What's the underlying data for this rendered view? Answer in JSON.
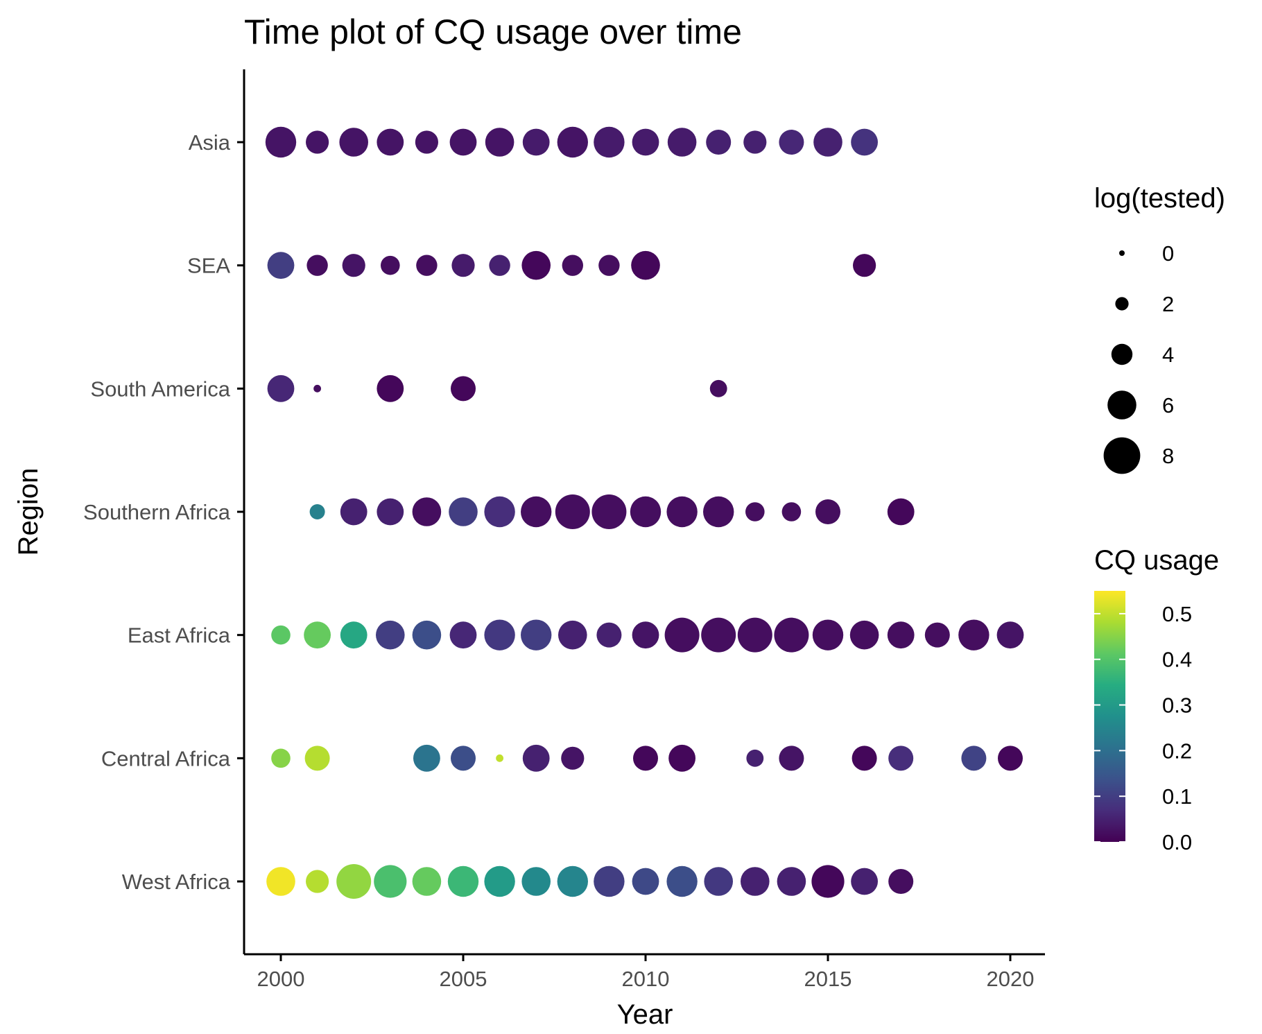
{
  "chart_data": {
    "type": "scatter",
    "title": "Time plot of CQ usage over time",
    "xlabel": "Year",
    "ylabel": "Region",
    "xlim": [
      1999,
      2021
    ],
    "x_ticks": [
      2000,
      2005,
      2010,
      2015,
      2020
    ],
    "categories": [
      "West Africa",
      "Central Africa",
      "East Africa",
      "Southern Africa",
      "South America",
      "SEA",
      "Asia"
    ],
    "grid": false,
    "size_legend": {
      "title": "log(tested)",
      "values": [
        0,
        2,
        4,
        6,
        8
      ],
      "labels": [
        "0",
        "2",
        "4",
        "6",
        "8"
      ]
    },
    "color_legend": {
      "title": "CQ usage",
      "range": [
        0,
        0.55
      ],
      "ticks": [
        0.0,
        0.1,
        0.2,
        0.3,
        0.4,
        0.5
      ],
      "labels": [
        "0.0",
        "0.1",
        "0.2",
        "0.3",
        "0.4",
        "0.5"
      ],
      "palette": "viridis"
    },
    "series": [
      {
        "region": "Asia",
        "points": [
          {
            "x": 2000,
            "size": 6.5,
            "color": 0.03
          },
          {
            "x": 2001,
            "size": 4.5,
            "color": 0.03
          },
          {
            "x": 2002,
            "size": 6.0,
            "color": 0.03
          },
          {
            "x": 2003,
            "size": 5.5,
            "color": 0.03
          },
          {
            "x": 2004,
            "size": 4.5,
            "color": 0.03
          },
          {
            "x": 2005,
            "size": 5.5,
            "color": 0.03
          },
          {
            "x": 2006,
            "size": 6.0,
            "color": 0.03
          },
          {
            "x": 2007,
            "size": 5.5,
            "color": 0.04
          },
          {
            "x": 2008,
            "size": 6.5,
            "color": 0.03
          },
          {
            "x": 2009,
            "size": 6.5,
            "color": 0.04
          },
          {
            "x": 2010,
            "size": 5.5,
            "color": 0.04
          },
          {
            "x": 2011,
            "size": 6.0,
            "color": 0.04
          },
          {
            "x": 2012,
            "size": 5.0,
            "color": 0.05
          },
          {
            "x": 2013,
            "size": 4.5,
            "color": 0.05
          },
          {
            "x": 2014,
            "size": 5.0,
            "color": 0.06
          },
          {
            "x": 2015,
            "size": 6.0,
            "color": 0.05
          },
          {
            "x": 2016,
            "size": 5.5,
            "color": 0.08
          }
        ]
      },
      {
        "region": "SEA",
        "points": [
          {
            "x": 2000,
            "size": 5.5,
            "color": 0.1
          },
          {
            "x": 2001,
            "size": 4.0,
            "color": 0.02
          },
          {
            "x": 2002,
            "size": 4.5,
            "color": 0.03
          },
          {
            "x": 2003,
            "size": 3.5,
            "color": 0.02
          },
          {
            "x": 2004,
            "size": 4.0,
            "color": 0.02
          },
          {
            "x": 2005,
            "size": 4.5,
            "color": 0.04
          },
          {
            "x": 2006,
            "size": 4.0,
            "color": 0.05
          },
          {
            "x": 2007,
            "size": 6.0,
            "color": 0.01
          },
          {
            "x": 2008,
            "size": 4.0,
            "color": 0.02
          },
          {
            "x": 2009,
            "size": 4.0,
            "color": 0.02
          },
          {
            "x": 2010,
            "size": 6.0,
            "color": 0.01
          },
          {
            "x": 2016,
            "size": 4.5,
            "color": 0.01
          }
        ]
      },
      {
        "region": "South America",
        "points": [
          {
            "x": 2000,
            "size": 5.5,
            "color": 0.06
          },
          {
            "x": 2001,
            "size": 0.5,
            "color": 0.02
          },
          {
            "x": 2003,
            "size": 5.5,
            "color": 0.01
          },
          {
            "x": 2005,
            "size": 5.0,
            "color": 0.01
          },
          {
            "x": 2012,
            "size": 3.0,
            "color": 0.02
          }
        ]
      },
      {
        "region": "Southern Africa",
        "points": [
          {
            "x": 2001,
            "size": 2.5,
            "color": 0.24
          },
          {
            "x": 2002,
            "size": 5.5,
            "color": 0.05
          },
          {
            "x": 2003,
            "size": 5.5,
            "color": 0.05
          },
          {
            "x": 2004,
            "size": 6.0,
            "color": 0.02
          },
          {
            "x": 2005,
            "size": 6.0,
            "color": 0.1
          },
          {
            "x": 2006,
            "size": 6.5,
            "color": 0.07
          },
          {
            "x": 2007,
            "size": 6.5,
            "color": 0.02
          },
          {
            "x": 2008,
            "size": 7.5,
            "color": 0.02
          },
          {
            "x": 2009,
            "size": 7.5,
            "color": 0.02
          },
          {
            "x": 2010,
            "size": 6.5,
            "color": 0.02
          },
          {
            "x": 2011,
            "size": 6.5,
            "color": 0.02
          },
          {
            "x": 2012,
            "size": 6.5,
            "color": 0.02
          },
          {
            "x": 2013,
            "size": 3.5,
            "color": 0.02
          },
          {
            "x": 2014,
            "size": 3.5,
            "color": 0.02
          },
          {
            "x": 2015,
            "size": 5.0,
            "color": 0.02
          },
          {
            "x": 2017,
            "size": 5.5,
            "color": 0.01
          }
        ]
      },
      {
        "region": "East Africa",
        "points": [
          {
            "x": 2000,
            "size": 3.5,
            "color": 0.41
          },
          {
            "x": 2001,
            "size": 5.5,
            "color": 0.42
          },
          {
            "x": 2002,
            "size": 5.5,
            "color": 0.33
          },
          {
            "x": 2003,
            "size": 6.0,
            "color": 0.1
          },
          {
            "x": 2004,
            "size": 6.0,
            "color": 0.13
          },
          {
            "x": 2005,
            "size": 5.5,
            "color": 0.06
          },
          {
            "x": 2006,
            "size": 6.5,
            "color": 0.09
          },
          {
            "x": 2007,
            "size": 6.5,
            "color": 0.1
          },
          {
            "x": 2008,
            "size": 6.0,
            "color": 0.05
          },
          {
            "x": 2009,
            "size": 5.0,
            "color": 0.05
          },
          {
            "x": 2010,
            "size": 5.5,
            "color": 0.03
          },
          {
            "x": 2011,
            "size": 7.5,
            "color": 0.02
          },
          {
            "x": 2012,
            "size": 7.5,
            "color": 0.02
          },
          {
            "x": 2013,
            "size": 7.5,
            "color": 0.02
          },
          {
            "x": 2014,
            "size": 7.5,
            "color": 0.02
          },
          {
            "x": 2015,
            "size": 6.5,
            "color": 0.02
          },
          {
            "x": 2016,
            "size": 6.0,
            "color": 0.02
          },
          {
            "x": 2017,
            "size": 5.5,
            "color": 0.02
          },
          {
            "x": 2018,
            "size": 5.0,
            "color": 0.02
          },
          {
            "x": 2019,
            "size": 6.5,
            "color": 0.02
          },
          {
            "x": 2020,
            "size": 5.5,
            "color": 0.03
          }
        ]
      },
      {
        "region": "Central Africa",
        "points": [
          {
            "x": 2000,
            "size": 3.5,
            "color": 0.45
          },
          {
            "x": 2001,
            "size": 5.0,
            "color": 0.49
          },
          {
            "x": 2004,
            "size": 5.5,
            "color": 0.21
          },
          {
            "x": 2005,
            "size": 5.0,
            "color": 0.13
          },
          {
            "x": 2006,
            "size": 0.5,
            "color": 0.5
          },
          {
            "x": 2007,
            "size": 5.5,
            "color": 0.05
          },
          {
            "x": 2008,
            "size": 4.5,
            "color": 0.03
          },
          {
            "x": 2010,
            "size": 5.0,
            "color": 0.01
          },
          {
            "x": 2011,
            "size": 5.5,
            "color": 0.01
          },
          {
            "x": 2013,
            "size": 3.0,
            "color": 0.05
          },
          {
            "x": 2014,
            "size": 5.0,
            "color": 0.03
          },
          {
            "x": 2016,
            "size": 5.0,
            "color": 0.01
          },
          {
            "x": 2017,
            "size": 5.0,
            "color": 0.07
          },
          {
            "x": 2019,
            "size": 5.0,
            "color": 0.11
          },
          {
            "x": 2020,
            "size": 5.0,
            "color": 0.01
          }
        ]
      },
      {
        "region": "West Africa",
        "points": [
          {
            "x": 2000,
            "size": 6.0,
            "color": 0.54
          },
          {
            "x": 2001,
            "size": 4.5,
            "color": 0.49
          },
          {
            "x": 2002,
            "size": 7.5,
            "color": 0.46
          },
          {
            "x": 2003,
            "size": 7.0,
            "color": 0.39
          },
          {
            "x": 2004,
            "size": 6.0,
            "color": 0.42
          },
          {
            "x": 2005,
            "size": 6.5,
            "color": 0.37
          },
          {
            "x": 2006,
            "size": 6.5,
            "color": 0.3
          },
          {
            "x": 2007,
            "size": 6.0,
            "color": 0.26
          },
          {
            "x": 2008,
            "size": 6.5,
            "color": 0.25
          },
          {
            "x": 2009,
            "size": 6.5,
            "color": 0.1
          },
          {
            "x": 2010,
            "size": 5.5,
            "color": 0.12
          },
          {
            "x": 2011,
            "size": 6.5,
            "color": 0.13
          },
          {
            "x": 2012,
            "size": 6.0,
            "color": 0.09
          },
          {
            "x": 2013,
            "size": 6.0,
            "color": 0.05
          },
          {
            "x": 2014,
            "size": 6.0,
            "color": 0.05
          },
          {
            "x": 2015,
            "size": 7.0,
            "color": 0.01
          },
          {
            "x": 2016,
            "size": 5.5,
            "color": 0.05
          },
          {
            "x": 2017,
            "size": 5.0,
            "color": 0.02
          }
        ]
      }
    ]
  }
}
